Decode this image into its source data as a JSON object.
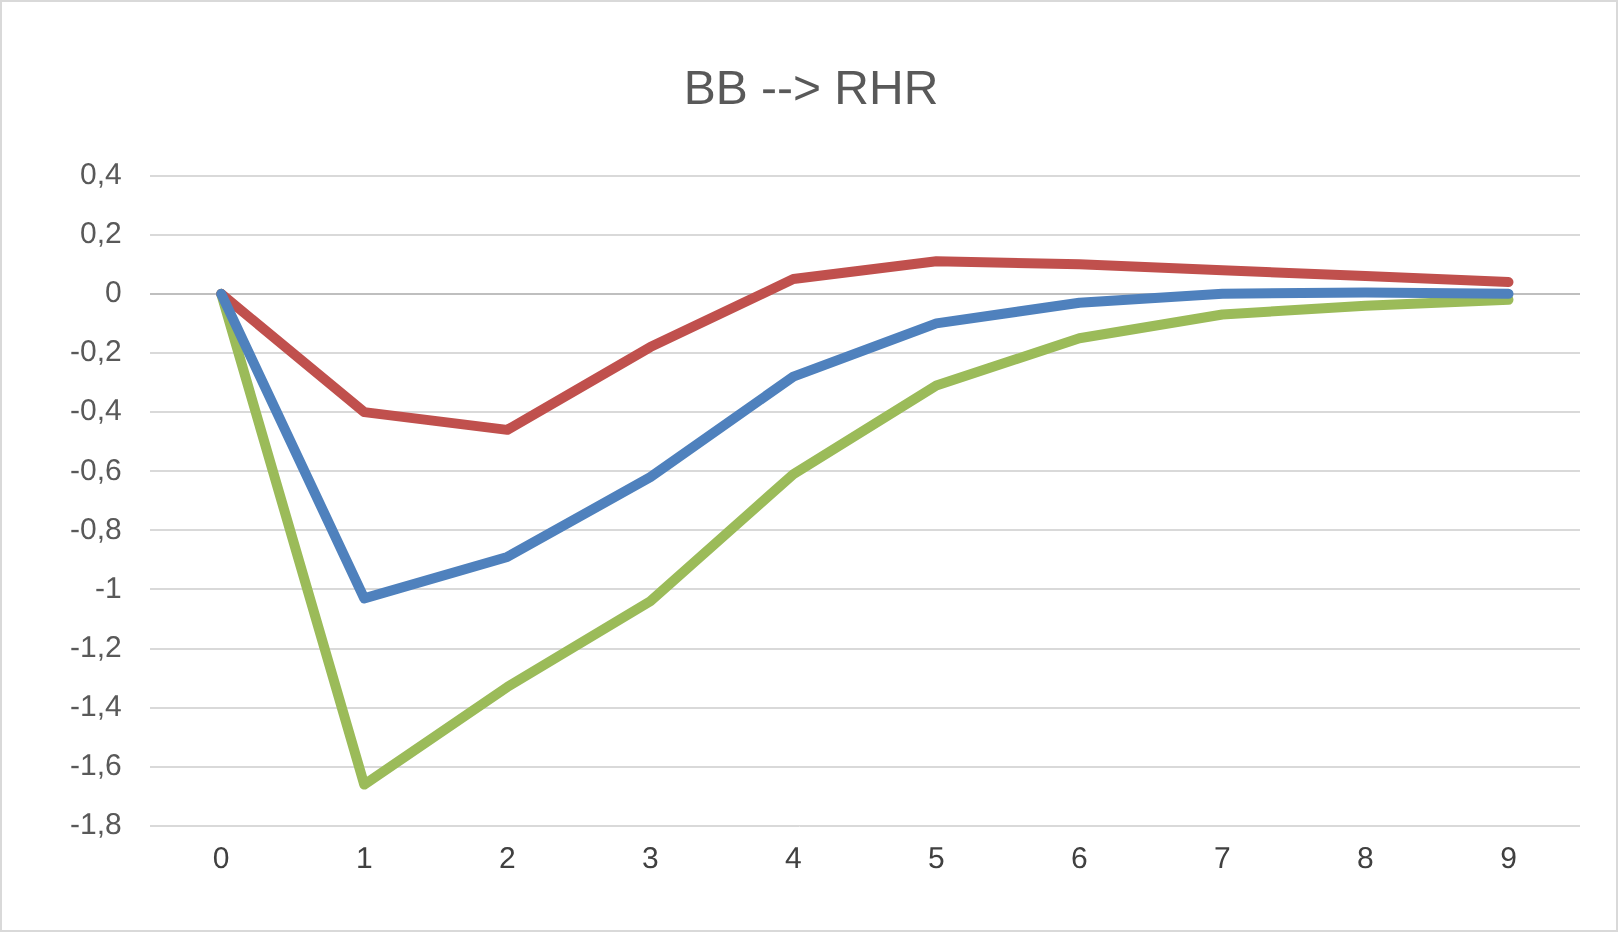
{
  "chart_data": {
    "type": "line",
    "title": "BB --> RHR",
    "categories": [
      "0",
      "1",
      "2",
      "3",
      "4",
      "5",
      "6",
      "7",
      "8",
      "9"
    ],
    "series": [
      {
        "color": "#4f81bd",
        "values": [
          0,
          -1.03,
          -0.89,
          -0.62,
          -0.28,
          -0.1,
          -0.03,
          0,
          0.005,
          0
        ]
      },
      {
        "color": "#c0504d",
        "values": [
          0,
          -0.4,
          -0.46,
          -0.18,
          0.05,
          0.11,
          0.1,
          0.08,
          0.06,
          0.04
        ]
      },
      {
        "color": "#9bbb59",
        "values": [
          0,
          -1.66,
          -1.33,
          -1.04,
          -0.61,
          -0.31,
          -0.15,
          -0.07,
          -0.04,
          -0.02
        ]
      }
    ],
    "ylim": [
      -1.8,
      0.4
    ],
    "yticks": [
      {
        "value": -1.8,
        "label": "-1,8"
      },
      {
        "value": -1.6,
        "label": "-1,6"
      },
      {
        "value": -1.4,
        "label": "-1,4"
      },
      {
        "value": -1.2,
        "label": "-1,2"
      },
      {
        "value": -1,
        "label": "-1"
      },
      {
        "value": -0.8,
        "label": "-0,8"
      },
      {
        "value": -0.6,
        "label": "-0,6"
      },
      {
        "value": -0.4,
        "label": "-0,4"
      },
      {
        "value": -0.2,
        "label": "-0,2"
      },
      {
        "value": 0,
        "label": "0"
      },
      {
        "value": 0.2,
        "label": "0,2"
      },
      {
        "value": 0.4,
        "label": "0,4"
      }
    ],
    "grid": "y",
    "legend": false,
    "marker": "none",
    "line_style": "solid"
  }
}
